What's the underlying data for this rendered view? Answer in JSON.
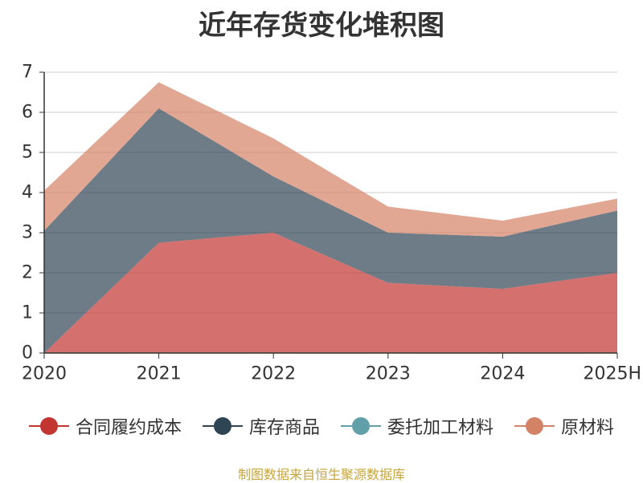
{
  "chart_data": {
    "type": "area",
    "title": "近年存货变化堆积图",
    "xlabel": "",
    "ylabel": "",
    "categories": [
      "2020",
      "2021",
      "2022",
      "2023",
      "2024",
      "2025H"
    ],
    "ylim": [
      0,
      7
    ],
    "yticks": [
      "0",
      "1",
      "2",
      "3",
      "4",
      "5",
      "6",
      "7"
    ],
    "stacked": true,
    "grid": true,
    "legend_position": "bottom",
    "series": [
      {
        "name": "合同履约成本",
        "color": "#c23531",
        "values": [
          0,
          2.75,
          3.0,
          1.75,
          1.6,
          2.0
        ]
      },
      {
        "name": "库存商品",
        "color": "#2f4554",
        "values": [
          3.05,
          3.35,
          1.4,
          1.25,
          1.3,
          1.55
        ]
      },
      {
        "name": "委托加工材料",
        "color": "#61a0a8",
        "values": [
          0,
          0,
          0,
          0,
          0,
          0
        ]
      },
      {
        "name": "原材料",
        "color": "#d48265",
        "values": [
          1.0,
          0.65,
          0.95,
          0.65,
          0.4,
          0.3
        ]
      }
    ]
  },
  "source_note": "制图数据来自恒生聚源数据库"
}
